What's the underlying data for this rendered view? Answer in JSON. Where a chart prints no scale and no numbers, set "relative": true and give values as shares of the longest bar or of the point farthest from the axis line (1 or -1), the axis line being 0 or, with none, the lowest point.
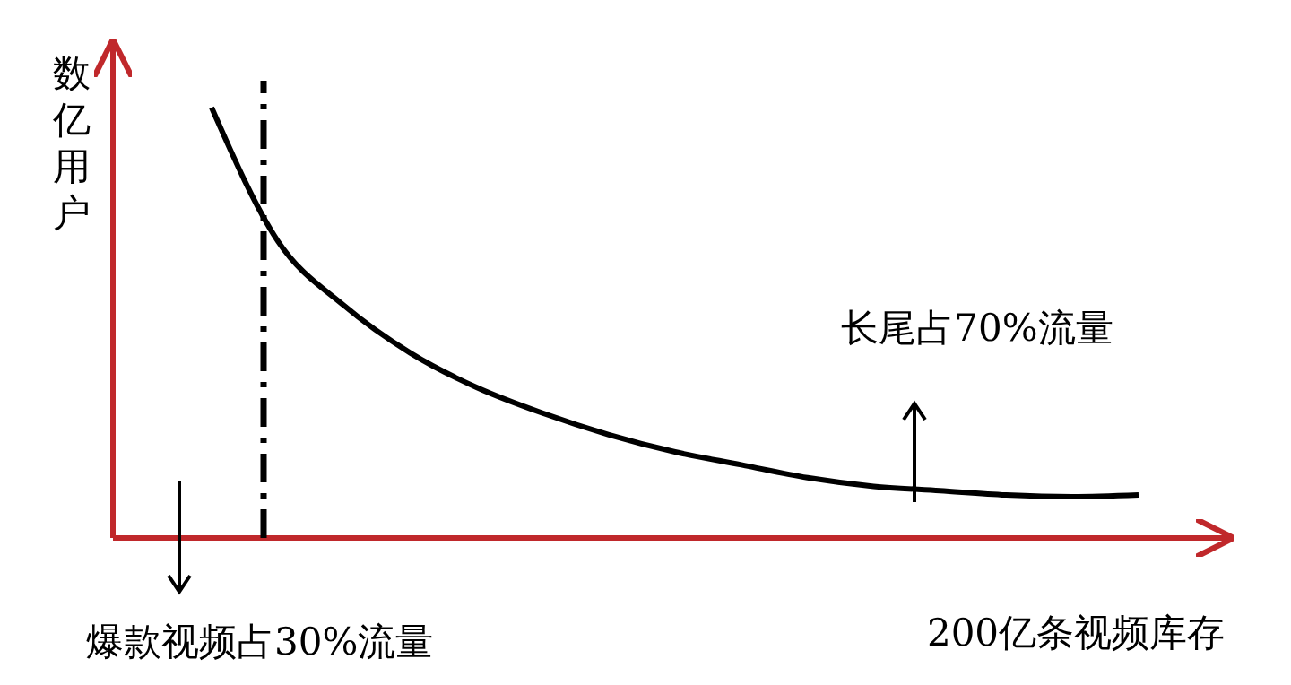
{
  "chart_data": {
    "type": "line",
    "relative": true,
    "xlabel": "200亿条视频库存",
    "ylabel": "数亿用户",
    "categories": [
      null,
      null,
      null,
      null,
      null,
      null,
      null,
      null,
      null,
      null,
      null,
      null,
      null,
      null,
      null
    ],
    "series": [
      {
        "color": "#000000",
        "values": [
          1,
          0.69,
          0.54,
          0.43,
          0.35,
          0.29,
          0.24,
          0.2,
          0.17,
          0.14,
          0.12,
          0.11,
          0.1,
          0.096,
          0.1
        ]
      }
    ],
    "annotations": [
      "长尾占70%流量",
      "爆款视频占30%流量"
    ],
    "grid": false
  }
}
